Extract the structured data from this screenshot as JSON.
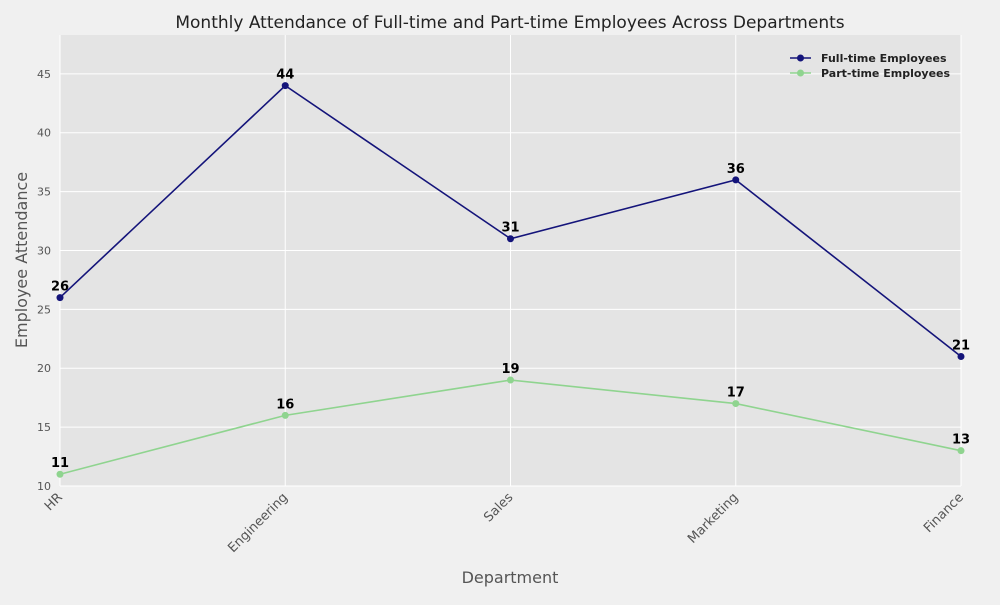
{
  "chart_data": {
    "type": "line",
    "title": "Monthly Attendance of Full-time and Part-time Employees Across Departments",
    "xlabel": "Department",
    "ylabel": "Employee Attendance",
    "categories": [
      "HR",
      "Engineering",
      "Sales",
      "Marketing",
      "Finance"
    ],
    "ylim": [
      10,
      48.3
    ],
    "yticks": [
      10,
      15,
      20,
      25,
      30,
      35,
      40,
      45
    ],
    "grid": true,
    "legend_position": "top-right",
    "series": [
      {
        "name": "Full-time Employees",
        "values": [
          26,
          44,
          31,
          36,
          21
        ],
        "color": "#14147a"
      },
      {
        "name": "Part-time Employees",
        "values": [
          11,
          16,
          19,
          17,
          13
        ],
        "color": "#8fd48f"
      }
    ]
  }
}
